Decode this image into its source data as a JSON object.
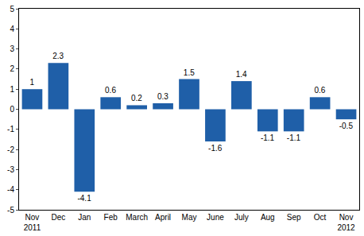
{
  "chart_data": {
    "type": "bar",
    "categories": [
      "Nov\n2011",
      "Dec",
      "Jan",
      "Feb",
      "March",
      "April",
      "May",
      "June",
      "July",
      "Aug",
      "Sep",
      "Oct",
      "Nov\n2012"
    ],
    "values": [
      1,
      2.3,
      -4.1,
      0.6,
      0.2,
      0.3,
      1.5,
      -1.6,
      1.4,
      -1.1,
      -1.1,
      0.6,
      -0.5
    ],
    "color": "#1f5fa8",
    "ylim": [
      -5,
      5
    ],
    "yticks": [
      -5,
      -4,
      -3,
      -2,
      -1,
      0,
      1,
      2,
      3,
      4,
      5
    ],
    "grid": false,
    "data_labels": true
  }
}
